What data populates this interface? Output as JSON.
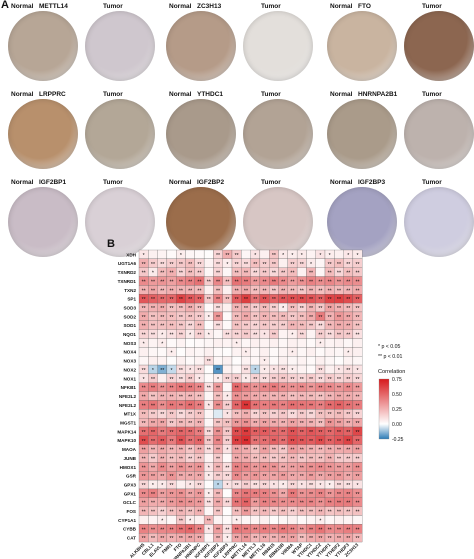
{
  "panel_a": {
    "label": "A",
    "groups": [
      {
        "gene": "METTL14",
        "normal_label": "Normal",
        "tumor_label": "Tumor",
        "normal_color": "#b7a696",
        "tumor_color": "#cfc7ce"
      },
      {
        "gene": "ZC3H13",
        "normal_label": "Normal",
        "tumor_label": "Tumor",
        "normal_color": "#b59b88",
        "tumor_color": "#e3dfdb"
      },
      {
        "gene": "FTO",
        "normal_label": "Normal",
        "tumor_label": "Tumor",
        "normal_color": "#c9b4a0",
        "tumor_color": "#8c6650"
      },
      {
        "gene": "LRPPRC",
        "normal_label": "Normal",
        "tumor_label": "Tumor",
        "normal_color": "#b8906c",
        "tumor_color": "#b3a797"
      },
      {
        "gene": "YTHDC1",
        "normal_label": "Normal",
        "tumor_label": "Tumor",
        "normal_color": "#a99a8b",
        "tumor_color": "#b2a395"
      },
      {
        "gene": "HNRNPA2B1",
        "normal_label": "Normal",
        "tumor_label": "Tumor",
        "normal_color": "#aa9b8a",
        "tumor_color": "#bdb2ad"
      },
      {
        "gene": "IGF2BP1",
        "normal_label": "Normal",
        "tumor_label": "Tumor",
        "normal_color": "#c9bcc6",
        "tumor_color": "#d9d0d6"
      },
      {
        "gene": "IGF2BP2",
        "normal_label": "Normal",
        "tumor_label": "Tumor",
        "normal_color": "#9b6d4b",
        "tumor_color": "#d7c6c4"
      },
      {
        "gene": "IGF2BP3",
        "normal_label": "Normal",
        "tumor_label": "Tumor",
        "normal_color": "#a4a2c2",
        "tumor_color": "#cfcde0"
      }
    ]
  },
  "panel_b": {
    "label": "B",
    "legend_title": "Correlation",
    "legend_ticks": [
      "0.75",
      "0.50",
      "0.25",
      "0.00",
      "-0.25"
    ],
    "sig_note_1": "* p < 0.05",
    "sig_note_2": "** p < 0.01",
    "colors": {
      "pos": "#d7191c",
      "zero": "#ffffff",
      "neg": "#2c7bb6"
    }
  },
  "chart_data": {
    "type": "heatmap",
    "rows": [
      "XDH",
      "UGT1A6",
      "TXNRD2",
      "TXNRD1",
      "TXN2",
      "SP1",
      "SOD3",
      "SOD2",
      "SOD1",
      "NQO1",
      "NOS3",
      "NOX4",
      "NOX3",
      "NOX2",
      "NOX1",
      "NFKB1",
      "NFE2L2",
      "NFE2L2",
      "MT1X",
      "MGST1",
      "MAPK14",
      "MAPK10",
      "MAOA",
      "JUNB",
      "HMOX1",
      "GSR",
      "GPX3",
      "GPX1",
      "GCLC",
      "FOS",
      "CYP1A1",
      "CYBB",
      "CAT"
    ],
    "columns": [
      "ALKBH5",
      "CBLL1",
      "ELAVL1",
      "FMR1",
      "FTO",
      "HNRNPA2B1",
      "HNRNPC",
      "IGF2BP1",
      "IGF2BP2",
      "IGF2BP3",
      "LRPPRC",
      "METTL14",
      "METTL3",
      "METTL16",
      "RBM15",
      "RBM15B",
      "VIRMA",
      "WTAP",
      "YTHDC1",
      "YTHDC2",
      "YTHDF1",
      "YTHDF2",
      "YTHDF3",
      "ZC3H13"
    ],
    "value_range": [
      -0.25,
      0.75
    ],
    "values": [
      [
        0.08,
        0.05,
        0.04,
        0.02,
        0.06,
        0.03,
        0.02,
        0.01,
        0.14,
        0.26,
        0.17,
        0.03,
        0.09,
        0.05,
        0.19,
        0.07,
        0.06,
        0.07,
        0.04,
        0.09,
        0.06,
        0.05,
        0.08,
        0.07
      ],
      [
        0.26,
        0.17,
        0.12,
        0.16,
        0.18,
        0.21,
        0.13,
        0.04,
        0.12,
        0.06,
        0.14,
        0.12,
        0.21,
        0.16,
        0.18,
        0.05,
        0.16,
        0.14,
        0.07,
        0.03,
        0.18,
        0.21,
        0.14,
        0.16
      ],
      [
        0.18,
        0.07,
        0.22,
        0.26,
        0.14,
        0.21,
        0.17,
        0.03,
        0.14,
        0.03,
        0.21,
        0.23,
        0.13,
        0.18,
        0.13,
        0.18,
        0.22,
        0.05,
        0.24,
        0.03,
        0.22,
        0.13,
        0.21,
        0.18
      ],
      [
        0.38,
        0.33,
        0.35,
        0.31,
        0.38,
        0.41,
        0.46,
        0.17,
        0.39,
        0.21,
        0.46,
        0.43,
        0.33,
        0.38,
        0.43,
        0.38,
        0.32,
        0.36,
        0.41,
        0.37,
        0.39,
        0.35,
        0.38,
        0.37
      ],
      [
        0.25,
        0.29,
        0.23,
        0.26,
        0.24,
        0.24,
        0.22,
        0.05,
        0.21,
        0.05,
        0.26,
        0.28,
        0.21,
        0.23,
        0.18,
        0.24,
        0.22,
        0.18,
        0.24,
        0.21,
        0.25,
        0.22,
        0.24,
        0.27
      ],
      [
        0.55,
        0.52,
        0.49,
        0.5,
        0.61,
        0.55,
        0.51,
        0.18,
        0.41,
        0.21,
        0.53,
        0.63,
        0.46,
        0.56,
        0.51,
        0.55,
        0.57,
        0.58,
        0.56,
        0.52,
        0.61,
        0.62,
        0.58,
        0.52
      ],
      [
        0.23,
        0.25,
        0.27,
        0.2,
        0.21,
        0.26,
        0.2,
        0.02,
        0.11,
        0.05,
        0.24,
        0.24,
        0.16,
        0.22,
        0.15,
        0.06,
        0.21,
        0.14,
        0.24,
        0.18,
        0.3,
        0.25,
        0.22,
        0.19
      ],
      [
        0.27,
        0.2,
        0.22,
        0.21,
        0.18,
        0.19,
        0.17,
        0.06,
        0.34,
        0.02,
        0.22,
        0.28,
        0.19,
        0.24,
        0.21,
        0.22,
        0.18,
        0.21,
        0.27,
        0.43,
        0.25,
        0.34,
        0.29,
        0.23
      ],
      [
        0.26,
        0.2,
        0.2,
        0.21,
        0.18,
        0.13,
        0.21,
        0.01,
        0.11,
        0.02,
        0.2,
        0.17,
        0.14,
        0.18,
        0.16,
        0.16,
        0.24,
        0.22,
        0.18,
        0.12,
        0.23,
        0.27,
        0.26,
        0.2
      ],
      [
        0.14,
        0.11,
        0.07,
        0.1,
        0.14,
        0.07,
        0.15,
        0.06,
        0.03,
        0.11,
        0.14,
        0.17,
        0.11,
        0.09,
        0.17,
        0.04,
        0.06,
        0.13,
        0.04,
        0.16,
        0.12,
        0.18,
        0.17,
        0.1
      ],
      [
        0.07,
        0.04,
        0.06,
        0.02,
        0.04,
        0.01,
        0.02,
        0.03,
        0.05,
        0.04,
        0.06,
        0.03,
        0.05,
        0.04,
        0.05,
        0.03,
        0.05,
        0.04,
        0.02,
        0.06,
        0.04,
        0.05,
        0.03,
        0.05
      ],
      [
        0.05,
        0.03,
        0.02,
        0.06,
        0.01,
        0.04,
        0.03,
        0.05,
        0.02,
        0.01,
        0.04,
        0.06,
        0.03,
        0.05,
        0.02,
        0.04,
        0.06,
        0.03,
        0.05,
        0.02,
        0.04,
        0.03,
        0.06,
        0.05
      ],
      [
        0.03,
        0.05,
        0.04,
        0.01,
        0.05,
        0.02,
        0.04,
        0.11,
        0.03,
        0.05,
        0.01,
        0.04,
        0.03,
        0.06,
        0.02,
        0.05,
        0.03,
        0.04,
        0.02,
        0.05,
        0.03,
        0.01,
        0.04,
        0.03
      ],
      [
        0.12,
        -0.08,
        -0.15,
        -0.07,
        0.11,
        0.09,
        0.11,
        0.01,
        -0.2,
        0.05,
        0.03,
        0.1,
        -0.08,
        0.07,
        0.09,
        0.1,
        0.06,
        0.04,
        0.02,
        0.11,
        0.05,
        0.08,
        0.11,
        0.09
      ],
      [
        0.09,
        0.16,
        0.05,
        0.14,
        0.11,
        0.17,
        0.08,
        0.02,
        0.06,
        0.13,
        0.16,
        0.07,
        0.15,
        0.11,
        0.16,
        0.18,
        0.15,
        0.13,
        0.17,
        0.12,
        0.17,
        0.13,
        0.16,
        0.13
      ],
      [
        0.38,
        0.42,
        0.36,
        0.4,
        0.45,
        0.43,
        0.39,
        0.1,
        0.33,
        0.03,
        0.49,
        0.41,
        0.35,
        0.39,
        0.43,
        0.37,
        0.36,
        0.38,
        0.34,
        0.39,
        0.38,
        0.34,
        0.38,
        0.33
      ],
      [
        0.28,
        0.2,
        0.24,
        0.24,
        0.22,
        0.23,
        0.21,
        0.03,
        0.21,
        0.07,
        0.36,
        0.32,
        0.27,
        0.26,
        0.24,
        0.25,
        0.21,
        0.23,
        0.22,
        0.2,
        0.24,
        0.28,
        0.27,
        0.24
      ],
      [
        0.42,
        0.45,
        0.37,
        0.44,
        0.42,
        0.47,
        0.42,
        0.08,
        0.37,
        0.16,
        0.5,
        0.66,
        0.46,
        0.42,
        0.44,
        0.41,
        0.47,
        0.45,
        0.44,
        0.41,
        0.48,
        0.51,
        0.46,
        0.43
      ],
      [
        0.22,
        0.17,
        0.13,
        0.18,
        0.12,
        0.16,
        0.19,
        0.03,
        -0.04,
        0.09,
        0.21,
        0.26,
        0.14,
        0.19,
        0.15,
        0.18,
        0.12,
        0.17,
        0.13,
        0.2,
        0.2,
        0.22,
        0.18,
        0.14
      ],
      [
        0.23,
        0.28,
        0.29,
        0.18,
        0.22,
        0.21,
        0.24,
        0.03,
        0.19,
        0.2,
        0.33,
        0.36,
        0.26,
        0.3,
        0.27,
        0.25,
        0.3,
        0.26,
        0.25,
        0.21,
        0.35,
        0.31,
        0.26,
        0.29
      ],
      [
        0.47,
        0.5,
        0.43,
        0.47,
        0.5,
        0.48,
        0.42,
        0.12,
        0.36,
        0.18,
        0.58,
        0.64,
        0.52,
        0.53,
        0.49,
        0.48,
        0.56,
        0.51,
        0.55,
        0.52,
        0.49,
        0.53,
        0.51,
        0.6
      ],
      [
        0.58,
        0.48,
        0.53,
        0.43,
        0.56,
        0.46,
        0.5,
        0.18,
        0.4,
        0.16,
        0.63,
        0.68,
        0.46,
        0.47,
        0.51,
        0.47,
        0.58,
        0.55,
        0.53,
        0.58,
        0.51,
        0.55,
        0.61,
        0.5
      ],
      [
        0.31,
        0.24,
        0.28,
        0.24,
        0.25,
        0.19,
        0.26,
        0.11,
        0.27,
        0.09,
        0.3,
        0.27,
        0.2,
        0.31,
        0.22,
        0.18,
        0.32,
        0.28,
        0.25,
        0.23,
        0.26,
        0.27,
        0.28,
        0.31
      ],
      [
        0.24,
        0.17,
        0.25,
        0.2,
        0.22,
        0.15,
        0.19,
        0.04,
        0.17,
        0.02,
        0.28,
        0.27,
        0.21,
        0.22,
        0.17,
        0.19,
        0.23,
        0.18,
        0.21,
        0.2,
        0.25,
        0.17,
        0.17,
        0.16
      ],
      [
        0.35,
        0.28,
        0.38,
        0.31,
        0.36,
        0.32,
        0.35,
        0.09,
        0.24,
        0.11,
        0.41,
        0.39,
        0.33,
        0.36,
        0.35,
        0.28,
        0.31,
        0.33,
        0.36,
        0.38,
        0.35,
        0.32,
        0.32,
        0.37
      ],
      [
        0.34,
        0.31,
        0.28,
        0.35,
        0.27,
        0.27,
        0.28,
        0.07,
        0.16,
        0.12,
        0.38,
        0.32,
        0.34,
        0.3,
        0.29,
        0.32,
        0.28,
        0.28,
        0.32,
        0.28,
        0.31,
        0.33,
        0.28,
        0.31
      ],
      [
        0.13,
        0.06,
        0.07,
        0.12,
        0.05,
        0.08,
        0.12,
        0.01,
        -0.08,
        0.09,
        0.11,
        0.16,
        0.1,
        0.13,
        0.09,
        0.07,
        0.13,
        0.09,
        0.11,
        0.08,
        0.06,
        0.12,
        0.1,
        0.09
      ],
      [
        0.38,
        0.41,
        0.31,
        0.34,
        0.36,
        0.29,
        0.33,
        0.06,
        0.23,
        0.01,
        0.39,
        0.45,
        0.42,
        0.41,
        0.36,
        0.28,
        0.44,
        0.35,
        0.37,
        0.4,
        0.34,
        0.39,
        0.4,
        0.36
      ],
      [
        0.31,
        0.27,
        0.28,
        0.33,
        0.37,
        0.35,
        0.33,
        0.1,
        0.28,
        0.13,
        0.45,
        0.51,
        0.33,
        0.41,
        0.39,
        0.37,
        0.38,
        0.39,
        0.4,
        0.36,
        0.41,
        0.43,
        0.43,
        0.38
      ],
      [
        0.24,
        0.2,
        0.15,
        0.21,
        0.24,
        0.2,
        0.25,
        0.03,
        0.19,
        0.01,
        0.22,
        0.33,
        0.2,
        0.23,
        0.18,
        0.21,
        0.16,
        0.21,
        0.21,
        0.24,
        0.19,
        0.21,
        0.19,
        0.2
      ],
      [
        0.05,
        0.04,
        0.06,
        0.03,
        0.18,
        0.06,
        0.05,
        0.24,
        0.04,
        0.02,
        0.06,
        0.03,
        0.04,
        0.05,
        0.01,
        0.03,
        0.05,
        0.02,
        0.04,
        0.06,
        0.03,
        0.05,
        0.04,
        0.03
      ],
      [
        0.41,
        0.37,
        0.39,
        0.41,
        0.46,
        0.49,
        0.41,
        0.08,
        0.32,
        0.1,
        0.44,
        0.42,
        0.39,
        0.42,
        0.39,
        0.44,
        0.4,
        0.34,
        0.41,
        0.45,
        0.38,
        0.39,
        0.42,
        0.41
      ],
      [
        0.3,
        0.22,
        0.28,
        0.25,
        0.27,
        0.29,
        0.27,
        0.03,
        0.24,
        0.06,
        0.29,
        0.33,
        0.23,
        0.26,
        0.24,
        0.28,
        0.3,
        0.21,
        0.27,
        0.29,
        0.25,
        0.27,
        0.29,
        0.23
      ]
    ]
  }
}
